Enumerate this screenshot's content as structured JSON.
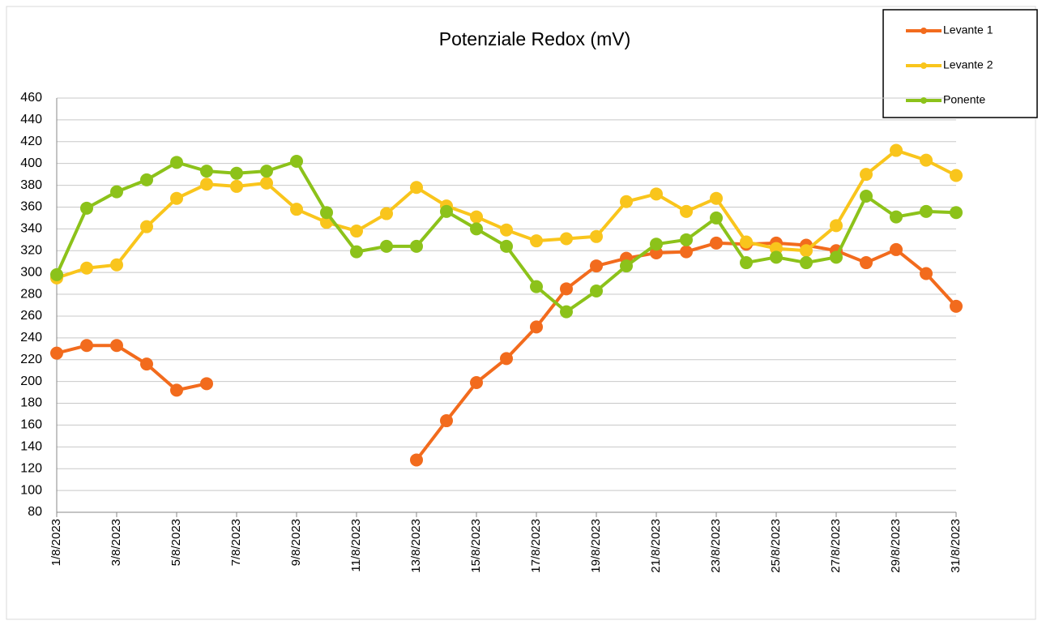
{
  "chart_data": {
    "type": "line",
    "title": "Potenziale Redox  (mV)",
    "categories": [
      "1/8/2023",
      null,
      "3/8/2023",
      null,
      "5/8/2023",
      null,
      "7/8/2023",
      null,
      "9/8/2023",
      null,
      "11/8/2023",
      null,
      "13/8/2023",
      null,
      "15/8/2023",
      null,
      "17/8/2023",
      null,
      "19/8/2023",
      null,
      "21/8/2023",
      null,
      "23/8/2023",
      null,
      "25/8/2023",
      null,
      "27/8/2023",
      null,
      "29/8/2023",
      null,
      "31/8/2023"
    ],
    "series": [
      {
        "name": "Levante 1",
        "color": "#f26b1d",
        "values": [
          226,
          233,
          233,
          216,
          192,
          198,
          null,
          null,
          null,
          null,
          null,
          null,
          128,
          164,
          199,
          221,
          250,
          285,
          306,
          313,
          318,
          319,
          327,
          326,
          327,
          325,
          320,
          309,
          321,
          299,
          269
        ]
      },
      {
        "name": "Levante 2",
        "color": "#f9c51c",
        "values": [
          295,
          304,
          307,
          342,
          368,
          381,
          379,
          382,
          358,
          346,
          338,
          354,
          378,
          361,
          351,
          339,
          329,
          331,
          333,
          365,
          372,
          356,
          368,
          328,
          322,
          320,
          343,
          390,
          412,
          403,
          389
        ]
      },
      {
        "name": "Ponente",
        "color": "#8cc21a",
        "values": [
          298,
          359,
          374,
          385,
          401,
          393,
          391,
          393,
          402,
          355,
          319,
          324,
          324,
          356,
          340,
          324,
          287,
          264,
          283,
          306,
          326,
          330,
          350,
          309,
          314,
          309,
          314,
          370,
          351,
          356,
          355
        ]
      }
    ],
    "ylim": [
      80,
      460
    ],
    "yticks": [
      80,
      100,
      120,
      140,
      160,
      180,
      200,
      220,
      240,
      260,
      280,
      300,
      320,
      340,
      360,
      380,
      400,
      420,
      440,
      460
    ],
    "grid": true,
    "legend": "top-right"
  }
}
